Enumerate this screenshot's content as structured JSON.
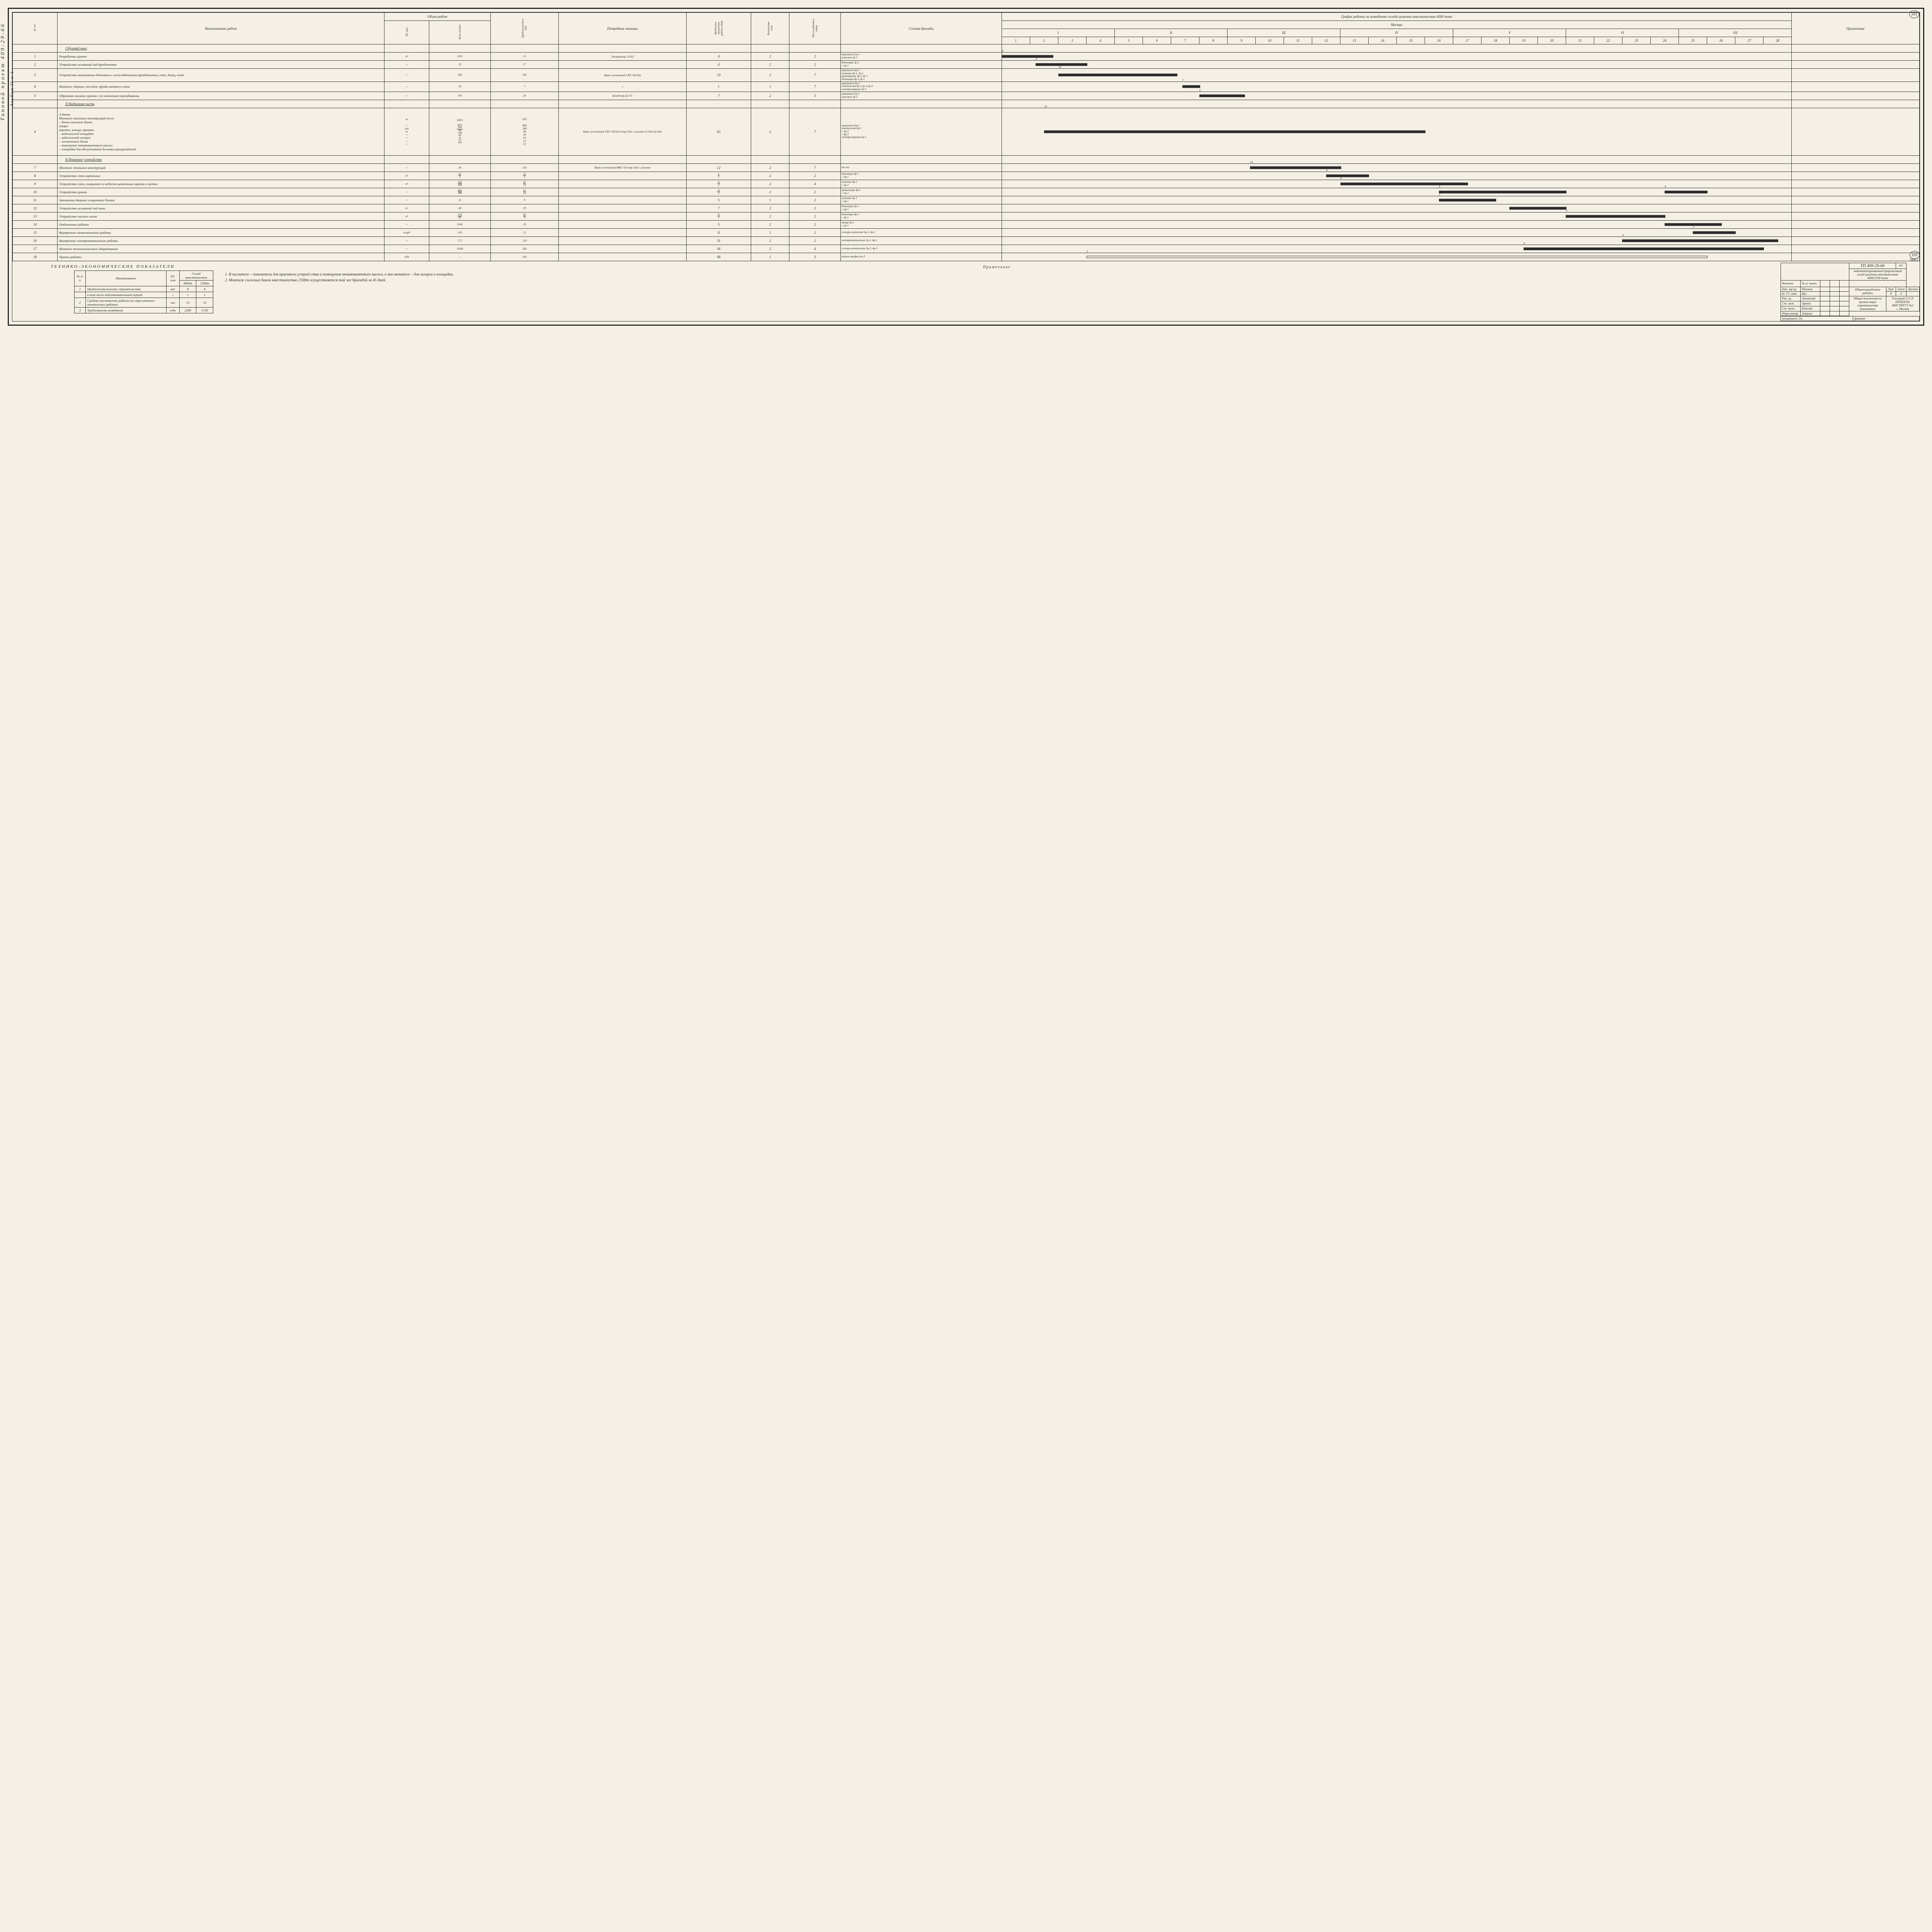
{
  "side_label1": "Типовой  проект  409-29-66",
  "side_label2": "Альбом II о 1",
  "page_num_top": "101",
  "page_num_bottom": "101",
  "page_extra": "7808/2",
  "header": {
    "col_num": "№ п/п",
    "col_name": "Наименование работ",
    "col_vol": "Объем работ",
    "col_vol_ed": "Ед. изм",
    "col_vol_kol": "Коли-чество",
    "col_trud": "Трудоем-кость в ч/дн",
    "col_mach": "Потребные машины",
    "col_prod": "Продолжи-тельность работ в днях",
    "col_smen": "Количество смен",
    "col_rab": "Число рабочих в смену",
    "col_brig": "Состав бригады",
    "col_graph": "График  работы  по  возведению  склада  цемента  вместимостью  4000  тонн",
    "col_months": "Месяцы",
    "col_weeks": "Недели",
    "col_prim": "Примечание",
    "months": [
      "I",
      "II",
      "III",
      "IV",
      "V",
      "VI",
      "VII"
    ]
  },
  "sections": {
    "s1": "I Нулевой цикл",
    "s2": "II Надземная часть",
    "s2a": "А Банки",
    "s2b": "Б Приемное устройство"
  },
  "rows": [
    {
      "n": "1",
      "name": "Разработка грунта",
      "ed": "м³",
      "kol": "2101",
      "trud": "15",
      "mach": "Экскаватор Э-652",
      "prod": "4",
      "sm": "2",
      "rab": "2",
      "brig": "машинист 5р-1\nземлекоп 2р-1",
      "bar_s": 0,
      "bar_e": 1.8,
      "lbl": "4"
    },
    {
      "n": "2",
      "name": "Устройство оснований под фундаменты",
      "ed": "«",
      "kol": "29",
      "trud": "17",
      "mach": "",
      "prod": "4",
      "sm": "2",
      "rab": "2",
      "brig": "бетонщик 3р-1\n« 2р-1",
      "bar_s": 1.2,
      "bar_e": 3,
      "lbl": "4"
    },
    {
      "n": "3",
      "name": "Устройство монолитных бетонных и железобетонных фундаментов, стен, днищ, плит",
      "ed": "«",
      "kol": "358",
      "trud": "265",
      "mach": "Кран гусеничный СКГ-30/10м",
      "prod": "19",
      "sm": "2",
      "rab": "7",
      "brig": "машинист 6р-1\nплотник 4р-1, 2р-1\nарматурщик 3р-1,2р-1\nбетонщик 4р-1,2р-1",
      "bar_s": 2,
      "bar_e": 6.2,
      "lbl": "14"
    },
    {
      "n": "4",
      "name": "Монтаж сборных жел.бет. фунда-ментов и стен",
      "ed": "«",
      "kol": "10",
      "trud": "7",
      "mach": "«",
      "prod": "1",
      "sm": "1",
      "rab": "7",
      "brig": "машинист 6р-1\nмонтажник 6р-1,5р-1,3р-2\nэлектросварщик 5р-1",
      "bar_s": 6.4,
      "bar_e": 7,
      "lbl": "7"
    },
    {
      "n": "5",
      "name": "Обратная засыпка грунта с уп-лотнением трамбовками",
      "ed": "«",
      "kol": "793",
      "trud": "20",
      "mach": "Бульдозер Д-271",
      "prod": "7",
      "sm": "2",
      "rab": "3",
      "brig": "машинист 5р-1\nземлекоп 2р-2",
      "bar_s": 7,
      "bar_e": 8.6,
      "lbl": "6"
    },
    {
      "n": "6",
      "name": "Монтаж стальных конструкций-всего\n– блока силосных банок:\n   опоры\n   воронки, кольца, крышки\n– надсилосной площадки\n– надсилосной галереи\n– лестничного блока\n– помещение пневмовинтового насоса\n– площадка для обслуживания бо-ковых разгрузателей",
      "ed": "т\n\n«\nп/м\nт\n«\n«\n«\n«",
      "kol": "358,5\n\n90,3\n395/60\n128\n43\n11\n27\n114",
      "trud": "876\n\n406\n280\n58\n18\n50\n12\n51",
      "mach": "Кран гусеничный СКГ-30/10м lстр-25м с гуськом 11,93м Q-16т",
      "prod": "63",
      "sm": "2",
      "rab": "7",
      "brig": "машинист 6р-1\nмонтажник 6р-1\n« 5р-2\n« 4р-2\nэлектросварщик 5р-1",
      "bar_s": 1.5,
      "bar_e": 15,
      "lbl": "14",
      "tall": true
    },
    {
      "n": "7",
      "name": "Монтаж стальных конструкций",
      "ed": "«",
      "kol": "36",
      "trud": "162",
      "mach": "Кран гусеничный МКГ 10 lстр-18м с гуськом",
      "prod": "12",
      "sm": "2",
      "rab": "7",
      "brig": "то же",
      "bar_s": 8.8,
      "bar_e": 12,
      "lbl": "14"
    },
    {
      "n": "8",
      "name": "Устройство стен кирпичных",
      "ed": "м³",
      "kol": "30/2",
      "trud": "22/2",
      "mach": "",
      "prod": "6/1",
      "sm": "2",
      "rab": "2",
      "brig": "каменщик 4р-1\n« 3р-1",
      "bar_s": 11.5,
      "bar_e": 13,
      "lbl": "4"
    },
    {
      "n": "9",
      "name": "Устройство стен, покрытий из асбесто-цементных щитов и листов",
      "ed": "м²",
      "kol": "500/106",
      "trud": "87/13",
      "mach": "",
      "prod": "11/2",
      "sm": "2",
      "rab": "4",
      "brig": "плотник 4р-2\n« 2р-2",
      "bar_s": 12,
      "bar_e": 16.5,
      "lbl": "8"
    },
    {
      "n": "10",
      "name": "Устройство кровли",
      "ed": "«",
      "kol": "445/140",
      "trud": "51/12",
      "mach": "",
      "prod": "13/3",
      "sm": "2",
      "rab": "2",
      "brig": "кровельщик 4р-1\n« 3р-1",
      "bar_s": 15.5,
      "bar_e": 20,
      "lbl": "6",
      "lbl2": "4",
      "bar2_s": 23.5,
      "bar2_e": 25
    },
    {
      "n": "11",
      "name": "Заполнение дверных и воротных блоков",
      "ed": "«",
      "kol": "21",
      "trud": "9",
      "mach": "",
      "prod": "5",
      "sm": "1",
      "rab": "2",
      "brig": "плотник 3р-1\n« 2р-1",
      "bar_s": 15.5,
      "bar_e": 17.5,
      "lbl": "2"
    },
    {
      "n": "12",
      "name": "Устройство оснований под полы",
      "ed": "м³",
      "kol": "40",
      "trud": "29",
      "mach": "",
      "prod": "7",
      "sm": "2",
      "rab": "2",
      "brig": "бетонщик 3р-1\n« 2р-1",
      "bar_s": 18,
      "bar_e": 20
    },
    {
      "n": "13",
      "name": "Устройство чистых полов",
      "ed": "м²",
      "kol": "570/82",
      "trud": "43/4",
      "mach": "",
      "prod": "11/1",
      "sm": "2",
      "rab": "2",
      "brig": "бетонщик 4р-1\n« 3р-1",
      "bar_s": 20,
      "bar_e": 23.5,
      "lbl": "4"
    },
    {
      "n": "14",
      "name": "Отделочные работы",
      "ed": "«",
      "kol": "2166",
      "trud": "19",
      "mach": "",
      "prod": "5",
      "sm": "2",
      "rab": "2",
      "brig": "маляр 3р-1\n« 2р-1",
      "bar_s": 23.5,
      "bar_e": 25.5
    },
    {
      "n": "15",
      "name": "Внутренние сантехнические работы",
      "ed": "т.руб",
      "kol": "1,05",
      "trud": "15",
      "mach": "",
      "prod": "8",
      "sm": "1",
      "rab": "2",
      "brig": "слесарь-сантехник 5р-1, 4р-1",
      "bar_s": 24.5,
      "bar_e": 26,
      "lbl": "2"
    },
    {
      "n": "16",
      "name": "Внутренние электромонтажные работы",
      "ed": "«",
      "kol": "7,71",
      "trud": "124",
      "mach": "",
      "prod": "31",
      "sm": "2",
      "rab": "2",
      "brig": "электромонтажник 5р-1, 4р-1",
      "bar_s": 22,
      "bar_e": 27.5,
      "lbl": "4"
    },
    {
      "n": "17",
      "name": "Монтаж технологического оборудования",
      "ed": "«",
      "kol": "14,84",
      "trud": "285",
      "mach": "",
      "prod": "36",
      "sm": "2",
      "rab": "4",
      "brig": "слесарь-монтажник 5р-2, 4р-2",
      "bar_s": 18.5,
      "bar_e": 27,
      "lbl": "8"
    },
    {
      "n": "18",
      "name": "Прочие работы",
      "ed": "ч/дн",
      "kol": "—",
      "trud": "203",
      "mach": "",
      "prod": "68",
      "sm": "1",
      "rab": "3",
      "brig": "разные профессии-3",
      "bar_s": 3,
      "bar_e": 25,
      "lbl": "3",
      "dashed": true
    }
  ],
  "tech_caption": "Технико-экономические показатели",
  "tech_header": {
    "n": "№ п/п",
    "name": "Наименование",
    "ed": "Ед. изм",
    "v1": "Склад вместимостью",
    "v1a": "4000т",
    "v1b": "2500т"
  },
  "tech_rows": [
    {
      "n": "1",
      "name": "Продолжительность строительства",
      "ed": "мес",
      "v1": "8",
      "v2": "6"
    },
    {
      "n": "",
      "name": "в том числе подготовительный период",
      "ed": "«",
      "v1": "1",
      "v2": "1"
    },
    {
      "n": "2",
      "name": "Средняя численность рабочих на стро-ительно-монтажных работах",
      "ed": "чел",
      "v1": "13",
      "v2": "13"
    },
    {
      "n": "3",
      "name": "Трудоемкость возведения",
      "ed": "ч/дн",
      "v1": "2280",
      "v2": "1720"
    }
  ],
  "notes_title": "Примечание",
  "notes": [
    "1. В числителе – показатели для приемного устрой-ства и помещения пневмовинтового насоса, в зна-менателе – для галереи и площадки.",
    "2. Монтаж силосных банок вместимостью 2500т осуществляется той же бригадой за 45 дней."
  ],
  "title_block": {
    "code": "ТП 409-29-66",
    "oc": "ОС",
    "title1": "Автоматизированный прирельсовый склад цемента вместимостью 4000/2500 тонн",
    "title2": "Общеплощадочные работы",
    "title3": "Общие положения по органи-зации строительства (окончание)",
    "lit": "Лит.",
    "list": "Лист",
    "listov": "Листов",
    "lit_v": "Р",
    "list_v": "3",
    "listov_v": "",
    "org": "Госстрой СССР\nПРОЕКТН. ИНСТИТУТ №2\nг. Москва",
    "copy": "копировала: Ол.",
    "fmt": "формат",
    "stamps": [
      [
        "Изменен",
        "№ ус замен",
        "Подп",
        "",
        ""
      ],
      [
        "Нач. мр-кр",
        "Пчелков",
        "",
        ""
      ],
      [
        "Н. ГУ. отд.",
        "Вах",
        "",
        ""
      ],
      [
        "Рук. гр.",
        "Леневский",
        "",
        ""
      ],
      [
        "Ст. инж.",
        "Зурина",
        "",
        ""
      ],
      [
        "Ст. техн.",
        "Квасова",
        "",
        ""
      ],
      [
        "Норм.контр",
        "Зайцева",
        "",
        ""
      ]
    ]
  }
}
